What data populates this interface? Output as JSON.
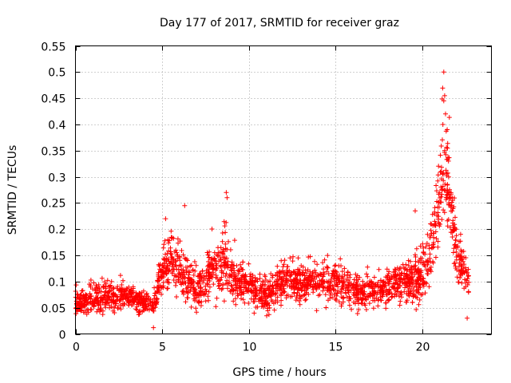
{
  "chart_data": {
    "type": "scatter",
    "title": "Day 177 of 2017, SRMTID for receiver graz",
    "xlabel": "GPS time / hours",
    "ylabel": "SRMTID / TECUs",
    "xlim": [
      0,
      24
    ],
    "ylim": [
      0,
      0.55
    ],
    "grid": true,
    "marker": "+",
    "color": "#ff0000",
    "xticks": [
      0,
      5,
      10,
      15,
      20
    ],
    "xtick_labels": [
      "0",
      "5",
      "10",
      "15",
      "20"
    ],
    "yticks": [
      0,
      0.05,
      0.1,
      0.15,
      0.2,
      0.25,
      0.3,
      0.35,
      0.4,
      0.45,
      0.5,
      0.55
    ],
    "ytick_labels": [
      "0",
      "0.05",
      "0.1",
      "0.15",
      "0.2",
      "0.25",
      "0.3",
      "0.35",
      "0.4",
      "0.45",
      "0.5",
      "0.55"
    ],
    "x_range_data": [
      0,
      22.7
    ],
    "profile": [
      {
        "x": 0.0,
        "y": 0.06,
        "spread": 0.02
      },
      {
        "x": 1.0,
        "y": 0.065,
        "spread": 0.025
      },
      {
        "x": 2.0,
        "y": 0.07,
        "spread": 0.025
      },
      {
        "x": 3.0,
        "y": 0.07,
        "spread": 0.025
      },
      {
        "x": 4.0,
        "y": 0.06,
        "spread": 0.02
      },
      {
        "x": 4.6,
        "y": 0.06,
        "spread": 0.02
      },
      {
        "x": 5.0,
        "y": 0.12,
        "spread": 0.04
      },
      {
        "x": 5.5,
        "y": 0.15,
        "spread": 0.045
      },
      {
        "x": 6.0,
        "y": 0.13,
        "spread": 0.05
      },
      {
        "x": 6.5,
        "y": 0.1,
        "spread": 0.04
      },
      {
        "x": 7.0,
        "y": 0.08,
        "spread": 0.03
      },
      {
        "x": 7.5,
        "y": 0.1,
        "spread": 0.04
      },
      {
        "x": 8.0,
        "y": 0.12,
        "spread": 0.045
      },
      {
        "x": 8.6,
        "y": 0.14,
        "spread": 0.06
      },
      {
        "x": 9.0,
        "y": 0.11,
        "spread": 0.04
      },
      {
        "x": 10.0,
        "y": 0.09,
        "spread": 0.035
      },
      {
        "x": 11.0,
        "y": 0.07,
        "spread": 0.03
      },
      {
        "x": 12.0,
        "y": 0.1,
        "spread": 0.035
      },
      {
        "x": 13.0,
        "y": 0.1,
        "spread": 0.035
      },
      {
        "x": 14.0,
        "y": 0.1,
        "spread": 0.035
      },
      {
        "x": 15.0,
        "y": 0.1,
        "spread": 0.035
      },
      {
        "x": 16.0,
        "y": 0.08,
        "spread": 0.03
      },
      {
        "x": 17.0,
        "y": 0.08,
        "spread": 0.03
      },
      {
        "x": 18.0,
        "y": 0.09,
        "spread": 0.03
      },
      {
        "x": 19.0,
        "y": 0.1,
        "spread": 0.035
      },
      {
        "x": 19.8,
        "y": 0.1,
        "spread": 0.04
      },
      {
        "x": 20.3,
        "y": 0.14,
        "spread": 0.05
      },
      {
        "x": 20.8,
        "y": 0.22,
        "spread": 0.07
      },
      {
        "x": 21.3,
        "y": 0.3,
        "spread": 0.09
      },
      {
        "x": 21.6,
        "y": 0.27,
        "spread": 0.08
      },
      {
        "x": 22.0,
        "y": 0.15,
        "spread": 0.05
      },
      {
        "x": 22.7,
        "y": 0.1,
        "spread": 0.04
      }
    ],
    "notable_points": [
      {
        "x": 21.25,
        "y": 0.5
      },
      {
        "x": 21.3,
        "y": 0.455
      },
      {
        "x": 21.25,
        "y": 0.445
      },
      {
        "x": 21.35,
        "y": 0.42
      },
      {
        "x": 21.2,
        "y": 0.4
      },
      {
        "x": 21.45,
        "y": 0.39
      },
      {
        "x": 8.7,
        "y": 0.27
      },
      {
        "x": 8.75,
        "y": 0.26
      },
      {
        "x": 19.6,
        "y": 0.235
      },
      {
        "x": 6.3,
        "y": 0.245
      },
      {
        "x": 5.2,
        "y": 0.22
      },
      {
        "x": 4.5,
        "y": 0.012
      },
      {
        "x": 22.6,
        "y": 0.03
      }
    ]
  }
}
